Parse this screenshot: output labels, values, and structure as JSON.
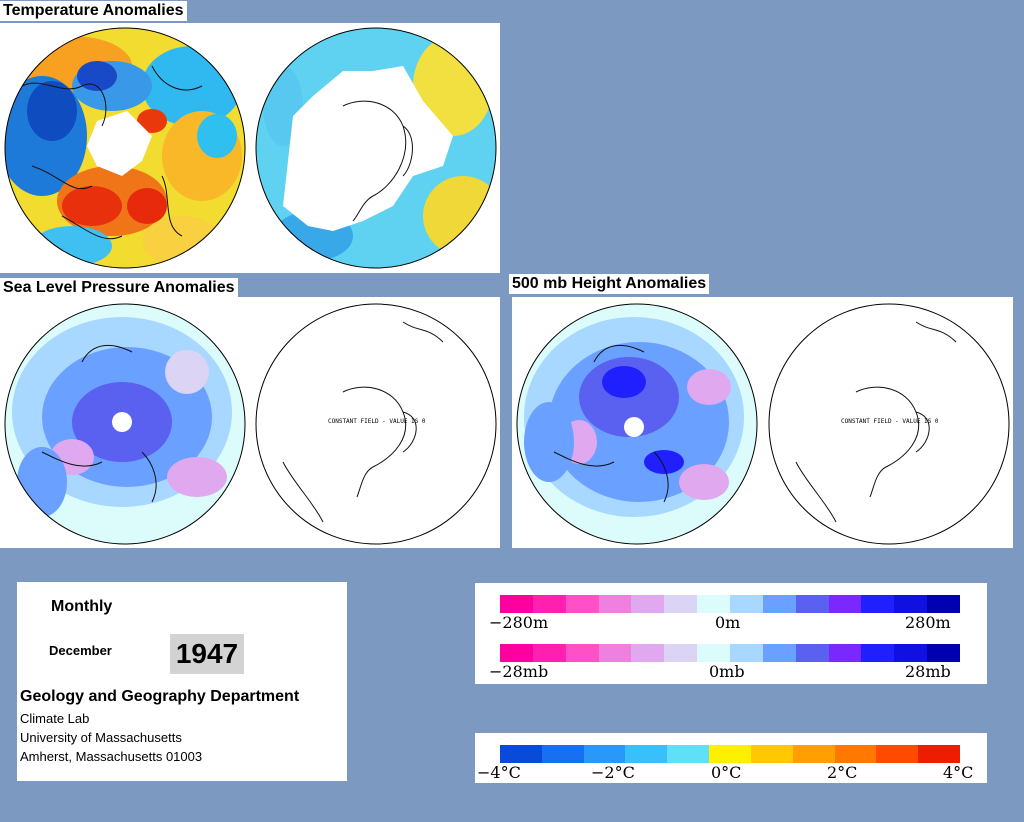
{
  "panels": {
    "temperature": {
      "title": "Temperature Anomalies"
    },
    "slp": {
      "title": "Sea Level Pressure Anomalies",
      "south_note": "CONSTANT FIELD - VALUE IS 0"
    },
    "height500": {
      "title": "500 mb Height Anomalies",
      "south_note": "CONSTANT FIELD - VALUE IS 0"
    }
  },
  "info": {
    "period": "Monthly",
    "month": "December",
    "year": "1947",
    "department": "Geology and Geography Department",
    "lab": "Climate Lab",
    "university": "University of Massachusetts",
    "address": "Amherst, Massachusetts 01003"
  },
  "legend_height": {
    "colors": [
      "#ff00a0",
      "#ff20b0",
      "#ff50c8",
      "#f080e0",
      "#e0a8ee",
      "#dcd4f4",
      "#dcfcfc",
      "#a8d8ff",
      "#6aa0ff",
      "#5a60f0",
      "#7a28ff",
      "#2020ff",
      "#1010e0",
      "#0000b0"
    ],
    "row1_ticks": [
      "−280m",
      "0m",
      "280m"
    ],
    "row2_ticks": [
      "−28mb",
      "0mb",
      "28mb"
    ]
  },
  "legend_temp": {
    "colors": [
      "#0a4ad8",
      "#1670f0",
      "#2a98f8",
      "#3ac0f8",
      "#60e0f8",
      "#fff000",
      "#ffc800",
      "#ffa000",
      "#ff7800",
      "#ff4a00",
      "#ee1c00"
    ],
    "ticks": [
      "−4°C",
      "−2°C",
      "0°C",
      "2°C",
      "4°C"
    ]
  }
}
